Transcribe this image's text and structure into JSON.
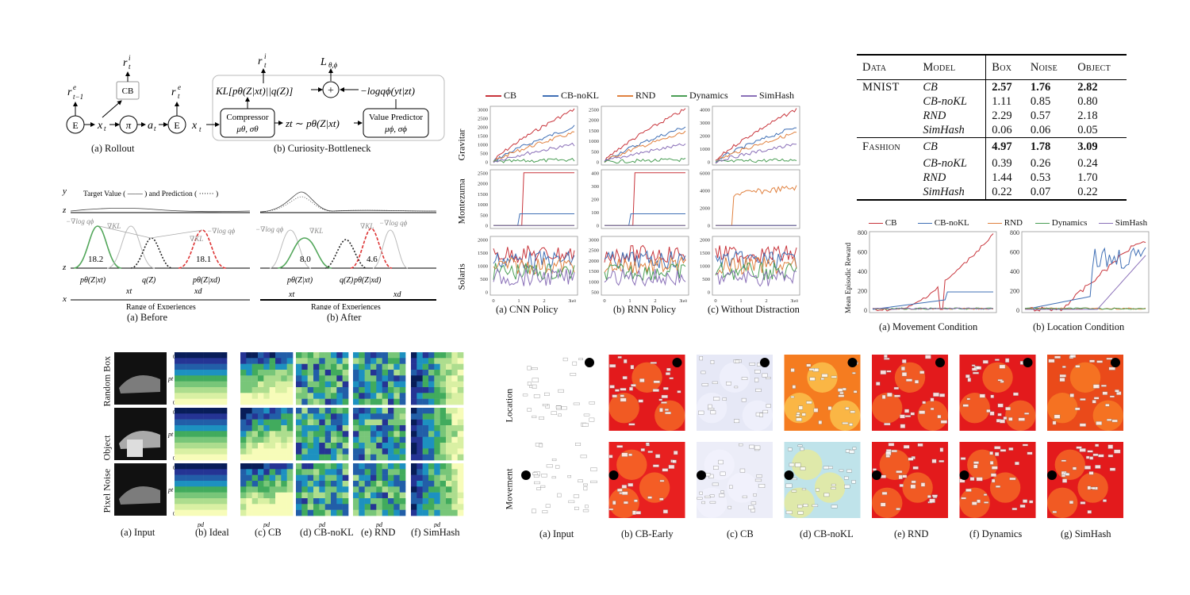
{
  "figure_a": {
    "rollout_caption": "(a) Rollout",
    "bottleneck_caption": "(b) Curiosity-Bottleneck",
    "nodes": {
      "env": "E",
      "policy": "π",
      "cb": "CB"
    },
    "vars": {
      "r_prev": "r",
      "x": "x",
      "a": "a",
      "ri": "r",
      "re": "r",
      "z": "z",
      "L": "L"
    },
    "compressor_label": "Compressor",
    "compressor_params": "μθ, σθ",
    "predictor_label": "Value Predictor",
    "predictor_params": "μϕ, σϕ",
    "kl_term": "KL[pθ(Z|xt)||q(Z)]",
    "logq_term": "−logqϕ(yt|zt)",
    "z_sample": "zt ∼ pθ(Z|xt)",
    "plus": "+"
  },
  "figure_b": {
    "legend": "Target Value ( —— ) and Prediction ( ······ )",
    "before_caption": "(a) Before",
    "after_caption": "(b) After",
    "range_label": "Range of Experiences",
    "before_vals": [
      "18.2",
      "18.1"
    ],
    "after_vals": [
      "8.0",
      "4.6"
    ],
    "labels": {
      "p_x": "pθ(Z|xt)",
      "q": "q(Z)",
      "p_d": "pθ(Z|xd)",
      "xt": "xt",
      "xd": "xd",
      "grad_kl": "∇KL",
      "grad_logq": "−∇log qϕ",
      "y": "y",
      "z": "z",
      "x": "x"
    }
  },
  "figure_c": {
    "legend": [
      {
        "name": "CB",
        "color": "#c8343b"
      },
      {
        "name": "CB-noKL",
        "color": "#3f6fb5"
      },
      {
        "name": "RND",
        "color": "#e0813f"
      },
      {
        "name": "Dynamics",
        "color": "#4a9e55"
      },
      {
        "name": "SimHash",
        "color": "#8a70b8"
      }
    ],
    "row_labels": [
      "Gravitar",
      "Montezuma",
      "Solaris"
    ],
    "col_captions": [
      "(a) CNN Policy",
      "(b) RNN Policy",
      "(c) Without Distraction"
    ],
    "x_ticks": [
      "0",
      "1",
      "2",
      "3"
    ],
    "x_exp": "1e8",
    "y_ticks": [
      [
        "3000",
        "2500",
        "2000",
        "1500",
        "1000",
        "500",
        "0"
      ],
      [
        "2500",
        "2000",
        "1500",
        "1000",
        "500",
        "0"
      ],
      [
        "4000",
        "3000",
        "2000",
        "1000",
        "0"
      ],
      [
        "2500",
        "2000",
        "1500",
        "1000",
        "500",
        "0"
      ],
      [
        "400",
        "300",
        "200",
        "100",
        "0"
      ],
      [
        "6000",
        "4000",
        "2000",
        "0"
      ],
      [
        "2000",
        "1500",
        "1000",
        "500",
        "0"
      ],
      [
        "3000",
        "2500",
        "2000",
        "1500",
        "1000",
        "500"
      ],
      [
        "2000",
        "1500",
        "1000",
        "500",
        "0"
      ]
    ]
  },
  "table": {
    "headers": [
      "Data",
      "Model",
      "Box",
      "Noise",
      "Object"
    ],
    "groups": [
      {
        "data": "MNIST",
        "rows": [
          {
            "model": "CB",
            "box": "2.57",
            "noise": "1.76",
            "object": "2.82",
            "bold": true
          },
          {
            "model": "CB-noKL",
            "box": "1.11",
            "noise": "0.85",
            "object": "0.80"
          },
          {
            "model": "RND",
            "box": "2.29",
            "noise": "0.57",
            "object": "2.18"
          },
          {
            "model": "SimHash",
            "box": "0.06",
            "noise": "0.06",
            "object": "0.05"
          }
        ]
      },
      {
        "data": "Fashion",
        "rows": [
          {
            "model": "CB",
            "box": "4.97",
            "noise": "1.78",
            "object": "3.09",
            "bold": true
          },
          {
            "model": "CB-noKL",
            "box": "0.39",
            "noise": "0.26",
            "object": "0.24"
          },
          {
            "model": "RND",
            "box": "1.44",
            "noise": "0.53",
            "object": "1.70"
          },
          {
            "model": "SimHash",
            "box": "0.22",
            "noise": "0.07",
            "object": "0.22"
          }
        ]
      }
    ]
  },
  "figure_d": {
    "legend": [
      "CB",
      "CB-noKL",
      "RND",
      "Dynamics",
      "SimHash"
    ],
    "ylabel": "Mean Episodic Reward",
    "left_ticks": [
      "800",
      "600",
      "400",
      "200",
      "0"
    ],
    "right_ticks": [
      "800",
      "600",
      "400",
      "200",
      "0"
    ],
    "captions": [
      "(a) Movement Condition",
      "(b) Location Condition"
    ]
  },
  "figure_e": {
    "row_labels": [
      "Random Box",
      "Object",
      "Pixel Noise"
    ],
    "captions": [
      "(a) Input",
      "(b) Ideal",
      "(c) CB",
      "(d) CB-noKL",
      "(e) RND",
      "(f) SimHash"
    ],
    "pt_label": "pt",
    "pd_label": "pd",
    "y_ticks": [
      "0.1",
      "0.9"
    ],
    "x_ticks": [
      "0.1",
      "0.9"
    ]
  },
  "figure_f": {
    "row_labels": [
      "Location",
      "Movement"
    ],
    "captions": [
      "(a) Input",
      "(b) CB-Early",
      "(c) CB",
      "(d) CB-noKL",
      "(e) RND",
      "(f) Dynamics",
      "(g) SimHash"
    ]
  }
}
